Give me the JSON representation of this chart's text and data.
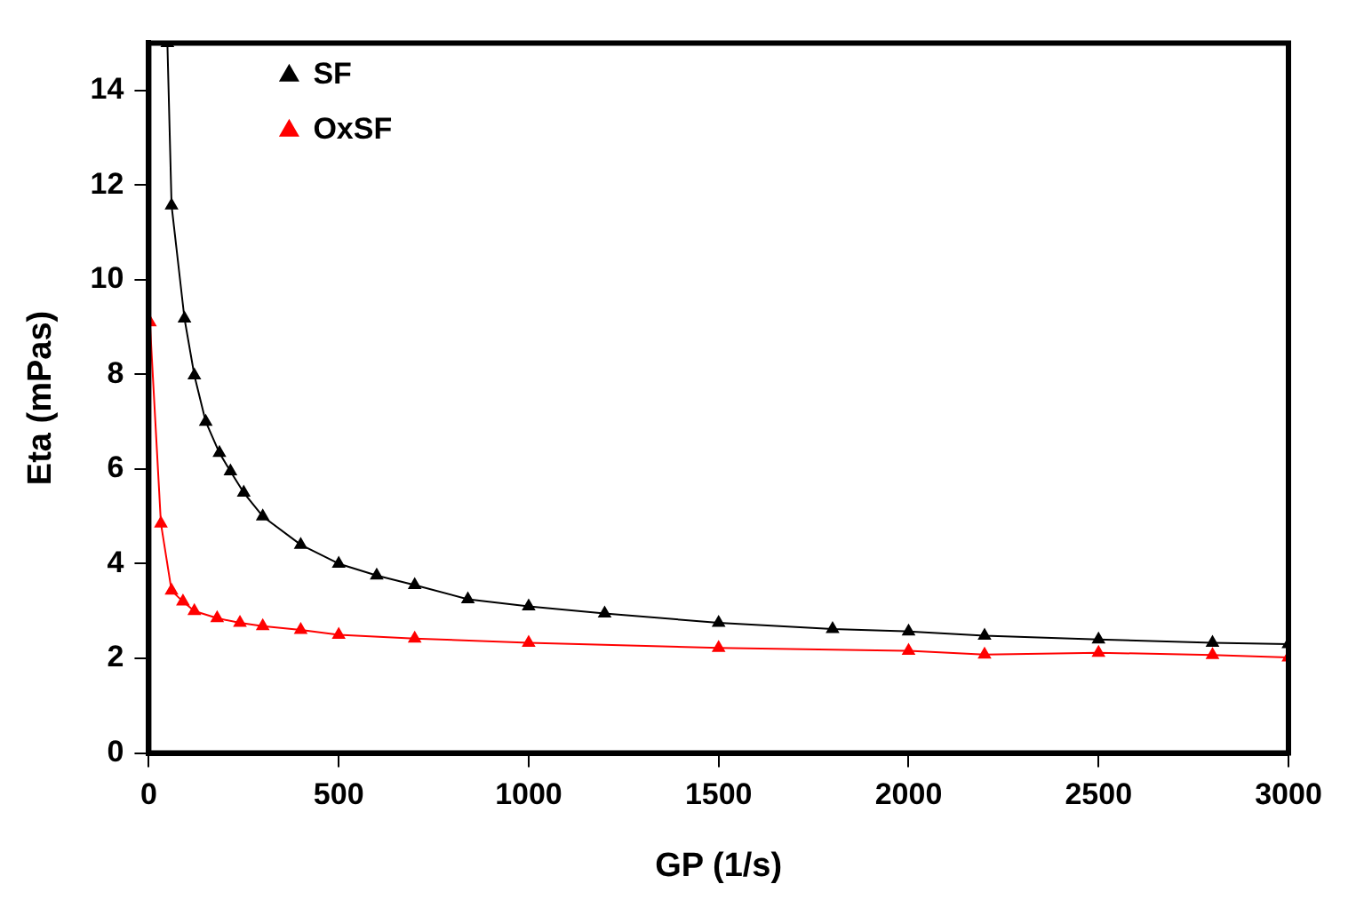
{
  "chart_data": {
    "type": "line",
    "xlabel": "GP (1/s)",
    "ylabel": "Eta (mPas)",
    "xlim": [
      0,
      3000
    ],
    "ylim": [
      0,
      15
    ],
    "xticks": [
      0,
      500,
      1000,
      1500,
      2000,
      2500,
      3000
    ],
    "yticks": [
      0,
      2,
      4,
      6,
      8,
      10,
      12,
      14
    ],
    "grid": false,
    "legend": "top left",
    "marker": "triangle",
    "line_style": "solid",
    "series": [
      {
        "name": "SF",
        "color": "#000000",
        "x": [
          49,
          60,
          94,
          120,
          150,
          186,
          215,
          250,
          300,
          400,
          500,
          600,
          700,
          840,
          1000,
          1200,
          1500,
          1800,
          2000,
          2200,
          2500,
          2800,
          3000
        ],
        "values": [
          15,
          11.57,
          9.18,
          7.98,
          7.0,
          6.34,
          5.95,
          5.5,
          5.0,
          4.4,
          4.0,
          3.75,
          3.55,
          3.25,
          3.1,
          2.95,
          2.75,
          2.62,
          2.57,
          2.48,
          2.4,
          2.33,
          2.3
        ]
      },
      {
        "name": "OxSF",
        "color": "#ff0000",
        "x": [
          3,
          32,
          60,
          90,
          120,
          180,
          240,
          300,
          400,
          500,
          700,
          1000,
          1500,
          2000,
          2200,
          2500,
          2800,
          3000
        ],
        "values": [
          9.1,
          4.85,
          3.43,
          3.2,
          3.0,
          2.85,
          2.75,
          2.68,
          2.6,
          2.5,
          2.42,
          2.33,
          2.22,
          2.16,
          2.08,
          2.12,
          2.07,
          2.02
        ]
      }
    ]
  }
}
